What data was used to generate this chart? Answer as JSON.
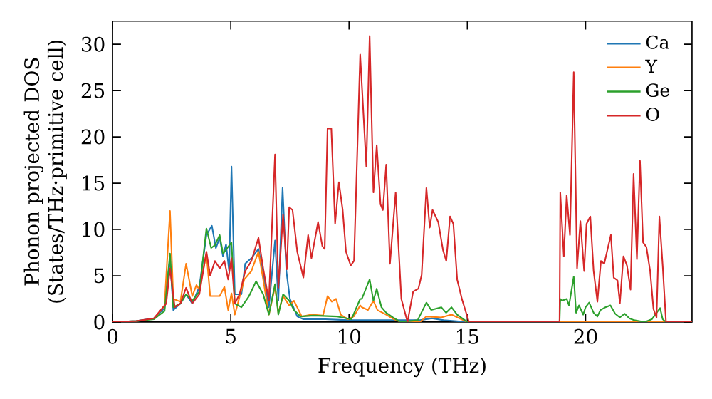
{
  "chart_data": {
    "type": "line",
    "xlabel": "Frequency (THz)",
    "ylabel": "Phonon projected DOS (States/THz·primitive cell)",
    "xlim": [
      0,
      24.5
    ],
    "ylim": [
      0,
      32.5
    ],
    "xticks": [
      0,
      5,
      10,
      15,
      20
    ],
    "yticks": [
      0,
      5,
      10,
      15,
      20,
      25,
      30
    ],
    "legend": "top right",
    "series": [
      {
        "name": "Ca",
        "color": "#1f77b4",
        "x": [
          0,
          1,
          1.75,
          2.2,
          2.43,
          2.57,
          2.87,
          3.11,
          3.37,
          3.67,
          3.97,
          4.2,
          4.37,
          4.53,
          4.67,
          4.8,
          4.93,
          5.03,
          5.17,
          5.45,
          5.61,
          5.87,
          6.17,
          6.41,
          6.61,
          6.87,
          7.01,
          7.19,
          7.35,
          7.5,
          7.81,
          8.07,
          9,
          10,
          11,
          12,
          13,
          13.5,
          14,
          15,
          18.9,
          24.5
        ],
        "values": [
          0,
          0.1,
          0.4,
          1.5,
          6.9,
          1.3,
          2.0,
          3.0,
          2.0,
          3.8,
          9.4,
          10.4,
          8.0,
          9.1,
          7.1,
          8.4,
          5.5,
          16.8,
          3.0,
          3.0,
          6.3,
          6.9,
          7.9,
          4.6,
          1.6,
          8.8,
          2.3,
          14.5,
          5.5,
          2.5,
          0.6,
          0.3,
          0.3,
          0.2,
          0.2,
          0.2,
          0.2,
          0.4,
          0.2,
          0,
          0,
          0
        ]
      },
      {
        "name": "Y",
        "color": "#ff7f0e",
        "x": [
          1.75,
          2.2,
          2.43,
          2.57,
          2.87,
          3.11,
          3.37,
          3.55,
          3.67,
          3.97,
          4.13,
          4.53,
          4.73,
          4.89,
          5.03,
          5.17,
          5.57,
          5.87,
          6.17,
          6.37,
          6.61,
          6.87,
          7.01,
          7.21,
          7.47,
          7.67,
          8.0,
          8.4,
          8.9,
          9.09,
          9.27,
          9.45,
          9.65,
          9.95,
          10.2,
          10.47,
          10.54,
          10.8,
          11.03,
          11.2,
          11.57,
          11.9,
          12.2,
          13.0,
          13.27,
          13.9,
          14.33,
          15.0,
          18.9,
          24.5
        ],
        "values": [
          0.3,
          1.8,
          12.0,
          2.5,
          2.2,
          6.3,
          2.8,
          4.0,
          3.5,
          7.4,
          2.8,
          2.8,
          3.8,
          1.3,
          3.1,
          0.8,
          4.6,
          5.5,
          7.6,
          4.6,
          0.8,
          3.8,
          1.0,
          2.8,
          1.8,
          2.3,
          0.6,
          0.8,
          0.7,
          2.8,
          2.2,
          2.5,
          0.8,
          0.3,
          0.6,
          1.8,
          1.6,
          1.3,
          2.3,
          1.3,
          0.8,
          0.3,
          0,
          0,
          0.6,
          0.5,
          0.8,
          0,
          0,
          0
        ]
      },
      {
        "name": "Ge",
        "color": "#2ca02c",
        "x": [
          0,
          1,
          1.75,
          2.2,
          2.43,
          2.57,
          2.87,
          3.11,
          3.37,
          3.67,
          3.97,
          4.17,
          4.33,
          4.53,
          4.67,
          4.85,
          5.03,
          5.17,
          5.45,
          5.77,
          6.07,
          6.37,
          6.61,
          6.87,
          7.01,
          7.21,
          7.47,
          7.67,
          7.95,
          8.5,
          9.5,
          10.1,
          10.47,
          10.54,
          10.87,
          11.03,
          11.17,
          11.37,
          11.57,
          11.85,
          12.17,
          12.9,
          13.27,
          13.47,
          13.9,
          14.1,
          14.33,
          14.57,
          15.0,
          18.9,
          18.93,
          19.0,
          19.2,
          19.3,
          19.5,
          19.6,
          19.72,
          19.9,
          20.0,
          20.15,
          20.34,
          20.5,
          20.63,
          20.84,
          21.05,
          21.25,
          21.45,
          21.65,
          21.85,
          22.05,
          22.5,
          22.8,
          23.15,
          23.26,
          23.4,
          24.5
        ],
        "values": [
          0,
          0.1,
          0.3,
          1.2,
          7.4,
          1.6,
          2.0,
          3.0,
          2.3,
          3.3,
          10.1,
          8.0,
          8.3,
          9.4,
          7.4,
          8.0,
          8.6,
          2.0,
          1.6,
          2.8,
          4.4,
          3.0,
          0.8,
          4.1,
          0.8,
          3.0,
          2.3,
          1.3,
          0.6,
          0.7,
          0.6,
          0.3,
          2.5,
          2.5,
          4.6,
          2.3,
          3.6,
          1.6,
          1.0,
          0.5,
          0,
          0.2,
          2.1,
          1.3,
          1.6,
          1.0,
          1.6,
          0.8,
          0,
          0,
          2.5,
          2.3,
          2.5,
          1.8,
          4.9,
          1.0,
          1.8,
          0.8,
          1.6,
          2.1,
          1.0,
          0.6,
          1.3,
          1.6,
          1.8,
          0.9,
          0.5,
          0.9,
          0.4,
          0.2,
          0,
          0.3,
          1.5,
          0.3,
          0,
          0
        ]
      },
      {
        "name": "O",
        "color": "#d62728",
        "x": [
          0,
          1,
          1.75,
          2.27,
          2.43,
          2.63,
          2.87,
          3.11,
          3.37,
          3.67,
          3.97,
          4.13,
          4.33,
          4.53,
          4.73,
          4.89,
          5.03,
          5.17,
          5.37,
          5.61,
          5.87,
          6.17,
          6.37,
          6.61,
          6.87,
          7.01,
          7.21,
          7.37,
          7.47,
          7.61,
          7.81,
          8.07,
          8.27,
          8.41,
          8.69,
          8.87,
          8.97,
          9.09,
          9.25,
          9.41,
          9.57,
          9.73,
          9.87,
          10.07,
          10.21,
          10.47,
          10.73,
          10.87,
          11.03,
          11.17,
          11.33,
          11.43,
          11.57,
          11.73,
          11.97,
          12.21,
          12.47,
          12.71,
          12.93,
          13.07,
          13.27,
          13.41,
          13.53,
          13.77,
          13.97,
          14.11,
          14.27,
          14.41,
          14.57,
          14.77,
          15.07,
          18.9,
          18.93,
          19.08,
          19.2,
          19.34,
          19.5,
          19.64,
          19.78,
          19.94,
          20.04,
          20.2,
          20.34,
          20.5,
          20.65,
          20.79,
          20.95,
          21.07,
          21.19,
          21.35,
          21.45,
          21.6,
          21.75,
          21.9,
          22.03,
          22.17,
          22.3,
          22.43,
          22.57,
          22.73,
          22.87,
          23.0,
          23.12,
          23.26,
          23.4,
          24.5
        ],
        "values": [
          0,
          0.1,
          0.4,
          2.0,
          5.8,
          1.6,
          2.0,
          3.7,
          2.0,
          3.0,
          7.6,
          5.0,
          6.6,
          5.8,
          6.6,
          4.6,
          6.9,
          2.0,
          3.0,
          5.5,
          6.6,
          9.1,
          5.8,
          2.3,
          18.1,
          3.7,
          11.6,
          5.7,
          12.4,
          12.1,
          7.6,
          4.8,
          9.4,
          6.9,
          10.8,
          8.2,
          7.9,
          20.9,
          20.9,
          10.6,
          15.1,
          12.1,
          7.6,
          6.1,
          6.6,
          28.9,
          16.8,
          30.9,
          14.0,
          19.1,
          12.7,
          12.1,
          17.0,
          6.3,
          14.0,
          2.5,
          0,
          3.3,
          3.6,
          5.1,
          14.5,
          10.2,
          12.1,
          10.8,
          7.8,
          6.6,
          11.4,
          10.6,
          4.6,
          2.5,
          0,
          0,
          14,
          7.1,
          13.7,
          9.4,
          27,
          5.8,
          10.9,
          5.5,
          10.6,
          11.4,
          5.5,
          2.2,
          6.6,
          6.3,
          8.1,
          9.4,
          4.8,
          4.5,
          2.0,
          7.1,
          6.1,
          3.5,
          16,
          6.8,
          17.4,
          8.6,
          8.1,
          5.5,
          1.4,
          0.5,
          11.4,
          6.1,
          0,
          0
        ]
      }
    ]
  }
}
